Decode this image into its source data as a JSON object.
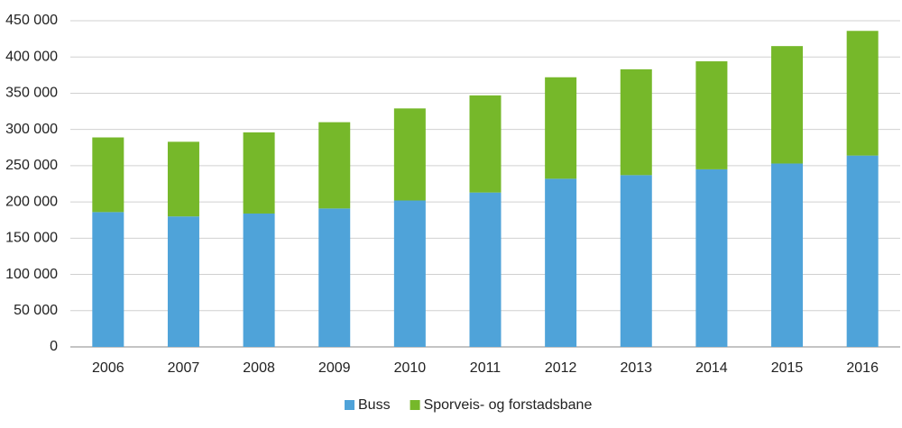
{
  "chart_data": {
    "type": "stacked_bar",
    "categories": [
      "2006",
      "2007",
      "2008",
      "2009",
      "2010",
      "2011",
      "2012",
      "2013",
      "2014",
      "2015",
      "2016"
    ],
    "series": [
      {
        "name": "Buss",
        "color": "#4fa3d9",
        "values": [
          186000,
          180000,
          184000,
          191000,
          202000,
          213000,
          232000,
          237000,
          245000,
          253000,
          264000
        ]
      },
      {
        "name": "Sporveis- og forstadsbane",
        "color": "#76b82a",
        "values": [
          103000,
          103000,
          112000,
          119000,
          127000,
          134000,
          140000,
          146000,
          149000,
          162000,
          172000
        ]
      }
    ],
    "ylim": [
      0,
      450000
    ],
    "yticks": [
      0,
      {
        "value": 50000,
        "label": "50 000"
      },
      {
        "value": 100000,
        "label": "100 000"
      },
      {
        "value": 150000,
        "label": "150 000"
      },
      {
        "value": 200000,
        "label": "200 000"
      },
      {
        "value": 250000,
        "label": "250 000"
      },
      {
        "value": 300000,
        "label": "300 000"
      },
      {
        "value": 350000,
        "label": "350 000"
      },
      {
        "value": 400000,
        "label": "400 000"
      },
      {
        "value": 450000,
        "label": "450 000"
      }
    ],
    "grid": true,
    "legend": "bottom"
  }
}
